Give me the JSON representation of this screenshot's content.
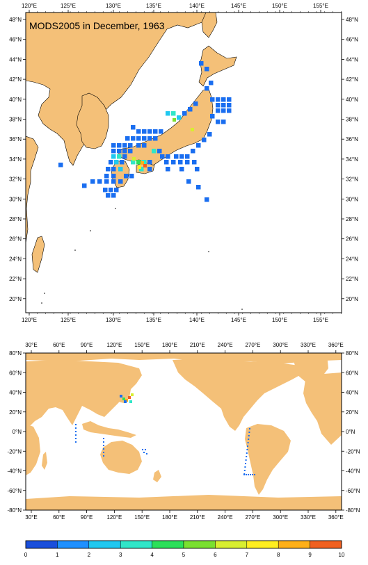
{
  "title": "MODS2005 in December, 1963",
  "colors": {
    "land": "#f4c078",
    "ocean": "#ffffff",
    "frame": "#000000"
  },
  "regional_map": {
    "lon_labels": [
      "120°E",
      "125°E",
      "130°E",
      "135°E",
      "140°E",
      "145°E",
      "150°E",
      "155°E"
    ],
    "lat_labels": [
      "48°N",
      "46°N",
      "44°N",
      "42°N",
      "40°N",
      "38°N",
      "36°N",
      "34°N",
      "32°N",
      "30°N",
      "28°N",
      "26°N",
      "24°N",
      "22°N",
      "20°N"
    ]
  },
  "global_map": {
    "lon_labels": [
      "30°E",
      "60°E",
      "90°E",
      "120°E",
      "150°E",
      "180°E",
      "210°E",
      "240°E",
      "270°E",
      "300°E",
      "330°E",
      "360°E"
    ],
    "lat_labels": [
      "80°N",
      "60°N",
      "40°N",
      "20°N",
      "0°N",
      "-20°N",
      "-40°N",
      "-60°N",
      "-80°N"
    ]
  },
  "colorbar": {
    "labels": [
      "0",
      "1",
      "2",
      "3",
      "4",
      "5",
      "6",
      "7",
      "8",
      "9",
      "10"
    ],
    "colors": [
      "#1a4fdc",
      "#1e90ff",
      "#20c8f0",
      "#30e6c8",
      "#2ce05a",
      "#7ae030",
      "#d8ee30",
      "#ffee20",
      "#ffb018",
      "#f06020"
    ]
  }
}
